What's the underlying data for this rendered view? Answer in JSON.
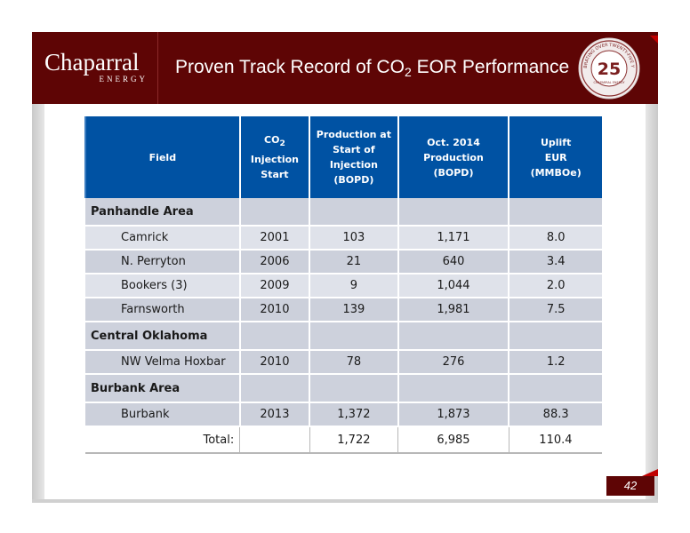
{
  "header": {
    "logo_main": "Chaparral",
    "logo_sub": "ENERGY",
    "title_prefix": "Proven Track Record of CO",
    "title_subscript": "2",
    "title_suffix": " EOR Performance",
    "seal": {
      "number": "25",
      "ring_text": "CELEBRATING OVER TWENTY-FIVE YEARS",
      "bottom_text": "CHAPARRAL ENERGY"
    }
  },
  "colors": {
    "header_bg": "#5e0505",
    "table_header_bg": "#0052a3",
    "row_light": "#dfe2ea",
    "row_dark": "#ccd0db",
    "accent_red": "#c00000"
  },
  "table": {
    "headers": {
      "field": "Field",
      "co2_prefix": "CO",
      "co2_sub": "2",
      "co2_rest_line1": "Injection",
      "co2_rest_line2": "Start",
      "production_start": [
        "Production at",
        "Start of",
        "Injection",
        "(BOPD)"
      ],
      "oct_2014": [
        "Oct. 2014",
        "Production (BOPD)"
      ],
      "uplift": [
        "Uplift",
        "EUR",
        "(MMBOe)"
      ]
    },
    "sections": [
      {
        "name": "Panhandle Area",
        "rows": [
          {
            "field": "Camrick",
            "start": "2001",
            "prod_start": "103",
            "oct_2014": "1,171",
            "uplift": "8.0"
          },
          {
            "field": "N. Perryton",
            "start": "2006",
            "prod_start": "21",
            "oct_2014": "640",
            "uplift": "3.4"
          },
          {
            "field": "Bookers (3)",
            "start": "2009",
            "prod_start": "9",
            "oct_2014": "1,044",
            "uplift": "2.0"
          },
          {
            "field": "Farnsworth",
            "start": "2010",
            "prod_start": "139",
            "oct_2014": "1,981",
            "uplift": "7.5"
          }
        ]
      },
      {
        "name": "Central Oklahoma",
        "rows": [
          {
            "field": "NW Velma Hoxbar",
            "start": "2010",
            "prod_start": "78",
            "oct_2014": "276",
            "uplift": "1.2"
          }
        ]
      },
      {
        "name": "Burbank Area",
        "rows": [
          {
            "field": "Burbank",
            "start": "2013",
            "prod_start": "1,372",
            "oct_2014": "1,873",
            "uplift": "88.3"
          }
        ]
      }
    ],
    "total": {
      "label": "Total:",
      "prod_start": "1,722",
      "oct_2014": "6,985",
      "uplift": "110.4"
    }
  },
  "page_number": "42"
}
